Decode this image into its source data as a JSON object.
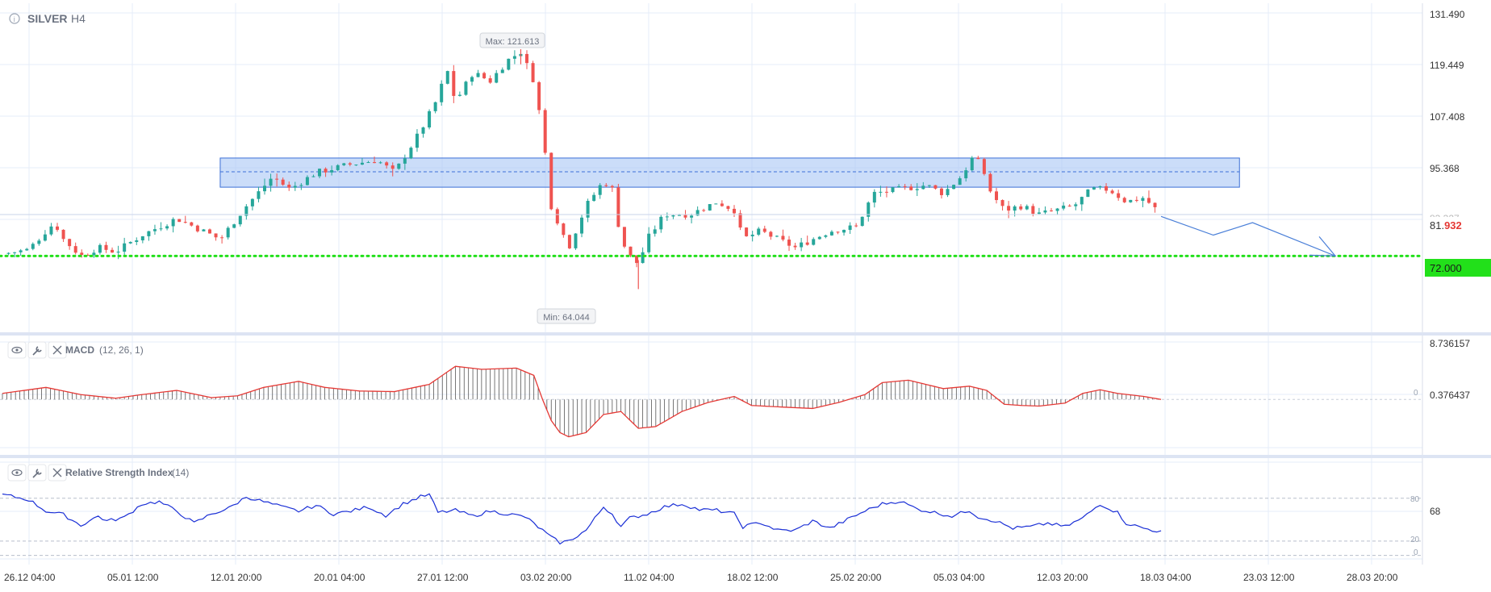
{
  "header": {
    "symbol": "SILVER",
    "timeframe": "H4"
  },
  "colors": {
    "bull": "#26a69a",
    "bear": "#ef5350",
    "zone_fill": "#a9c6f5",
    "zone_border": "#3b6fd6",
    "support_line": "#22e01a",
    "projection": "#4a7fd8",
    "macd_line": "#e53935",
    "macd_hist": "#555555",
    "rsi_line": "#1a2fd6",
    "grid": "#e6ecf8",
    "current_price": "#e53935",
    "support_label_bg": "#22e01a"
  },
  "chart_data": [
    {
      "type": "candlestick",
      "title": "SILVER H4",
      "x_dates": [
        "26.12 04:00",
        "05.01 12:00",
        "12.01 20:00",
        "20.01 04:00",
        "27.01 12:00",
        "03.02 20:00",
        "11.02 04:00",
        "18.02 12:00",
        "25.02 20:00",
        "05.03 04:00",
        "12.03 20:00",
        "18.03 04:00",
        "23.03 12:00",
        "28.03 20:00"
      ],
      "y_ticks": [
        "131.490",
        "119.449",
        "107.408",
        "95.368",
        "83.327",
        "72.000"
      ],
      "ylim": [
        56,
        131.49
      ],
      "series_path": [
        {
          "t": 0,
          "v": 72.5
        },
        {
          "t": 3,
          "v": 73.5
        },
        {
          "t": 5,
          "v": 78
        },
        {
          "t": 6,
          "v": 80
        },
        {
          "t": 7,
          "v": 76
        },
        {
          "t": 9,
          "v": 72
        },
        {
          "t": 11,
          "v": 74
        },
        {
          "t": 13,
          "v": 73
        },
        {
          "t": 16,
          "v": 77
        },
        {
          "t": 20,
          "v": 81
        },
        {
          "t": 22,
          "v": 79
        },
        {
          "t": 25,
          "v": 76
        },
        {
          "t": 28,
          "v": 84
        },
        {
          "t": 31,
          "v": 91
        },
        {
          "t": 33,
          "v": 88
        },
        {
          "t": 36,
          "v": 92
        },
        {
          "t": 40,
          "v": 94
        },
        {
          "t": 43,
          "v": 95
        },
        {
          "t": 45,
          "v": 92
        },
        {
          "t": 48,
          "v": 102
        },
        {
          "t": 50,
          "v": 110
        },
        {
          "t": 51,
          "v": 117
        },
        {
          "t": 52,
          "v": 109
        },
        {
          "t": 54,
          "v": 116
        },
        {
          "t": 56,
          "v": 114
        },
        {
          "t": 58,
          "v": 119
        },
        {
          "t": 59.5,
          "v": 121
        },
        {
          "t": 61,
          "v": 114
        },
        {
          "t": 62,
          "v": 102
        },
        {
          "t": 63,
          "v": 84
        },
        {
          "t": 64,
          "v": 79
        },
        {
          "t": 65,
          "v": 74
        },
        {
          "t": 67,
          "v": 84
        },
        {
          "t": 69,
          "v": 90
        },
        {
          "t": 70,
          "v": 88
        },
        {
          "t": 71,
          "v": 76
        },
        {
          "t": 72,
          "v": 72
        },
        {
          "t": 73,
          "v": 70
        },
        {
          "t": 74,
          "v": 76
        },
        {
          "t": 76,
          "v": 82
        },
        {
          "t": 79,
          "v": 82
        },
        {
          "t": 82,
          "v": 85
        },
        {
          "t": 84,
          "v": 83
        },
        {
          "t": 85,
          "v": 76
        },
        {
          "t": 87,
          "v": 78
        },
        {
          "t": 89,
          "v": 76
        },
        {
          "t": 91,
          "v": 74
        },
        {
          "t": 93,
          "v": 76
        },
        {
          "t": 95,
          "v": 78
        },
        {
          "t": 98,
          "v": 79
        },
        {
          "t": 100,
          "v": 87
        },
        {
          "t": 103,
          "v": 88
        },
        {
          "t": 106,
          "v": 89
        },
        {
          "t": 108,
          "v": 87
        },
        {
          "t": 110,
          "v": 91
        },
        {
          "t": 111.5,
          "v": 96
        },
        {
          "t": 112.5,
          "v": 93
        },
        {
          "t": 113.5,
          "v": 87
        },
        {
          "t": 115,
          "v": 83
        },
        {
          "t": 117,
          "v": 84
        },
        {
          "t": 119,
          "v": 82
        },
        {
          "t": 121,
          "v": 83
        },
        {
          "t": 123,
          "v": 84
        },
        {
          "t": 125,
          "v": 88
        },
        {
          "t": 127,
          "v": 88
        },
        {
          "t": 129,
          "v": 85
        },
        {
          "t": 131,
          "v": 86
        },
        {
          "t": 133,
          "v": 81.932
        }
      ],
      "max_label": "Max: 121.613",
      "max_value": 121.613,
      "min_label": "Min: 64.044",
      "min_value": 64.044,
      "current_price_prefix": "81.",
      "current_price_suffix": "932",
      "current_price": 81.932,
      "support_label": "72.000",
      "support_value": 72.0,
      "resistance_zone": {
        "from_t": 25,
        "to_t": 142,
        "low": 88.5,
        "high": 95.5,
        "mid": 92.2
      },
      "projection": [
        {
          "t": 133,
          "v": 81.5
        },
        {
          "t": 139,
          "v": 77
        },
        {
          "t": 143.5,
          "v": 80
        },
        {
          "t": 153,
          "v": 72
        }
      ],
      "grid": true
    },
    {
      "type": "macd",
      "label": "MACD",
      "params": "(12, 26, 1)",
      "y_ticks": [
        "8.736157",
        "0.376437"
      ],
      "zero_label": "0",
      "ylim": [
        -8,
        8.736157
      ],
      "series_path": [
        {
          "t": 0,
          "v": 1.0
        },
        {
          "t": 5,
          "v": 2.0
        },
        {
          "t": 9,
          "v": 0.8
        },
        {
          "t": 13,
          "v": 0.2
        },
        {
          "t": 16,
          "v": 0.8
        },
        {
          "t": 20,
          "v": 1.5
        },
        {
          "t": 24,
          "v": 0.3
        },
        {
          "t": 27,
          "v": 0.6
        },
        {
          "t": 30,
          "v": 2.0
        },
        {
          "t": 34,
          "v": 3.0
        },
        {
          "t": 37,
          "v": 2.0
        },
        {
          "t": 41,
          "v": 1.4
        },
        {
          "t": 45,
          "v": 1.3
        },
        {
          "t": 49,
          "v": 2.5
        },
        {
          "t": 52,
          "v": 5.5
        },
        {
          "t": 55,
          "v": 5.0
        },
        {
          "t": 59,
          "v": 5.2
        },
        {
          "t": 61,
          "v": 4.0
        },
        {
          "t": 62,
          "v": 0.0
        },
        {
          "t": 63,
          "v": -3.5
        },
        {
          "t": 64,
          "v": -5.5
        },
        {
          "t": 65,
          "v": -6.2
        },
        {
          "t": 67,
          "v": -5.5
        },
        {
          "t": 69,
          "v": -2.5
        },
        {
          "t": 71,
          "v": -2.0
        },
        {
          "t": 73,
          "v": -4.8
        },
        {
          "t": 75,
          "v": -4.5
        },
        {
          "t": 78,
          "v": -2.0
        },
        {
          "t": 81,
          "v": -0.5
        },
        {
          "t": 84,
          "v": 0.5
        },
        {
          "t": 86,
          "v": -1.0
        },
        {
          "t": 90,
          "v": -1.3
        },
        {
          "t": 93,
          "v": -1.5
        },
        {
          "t": 96,
          "v": -0.5
        },
        {
          "t": 99,
          "v": 0.8
        },
        {
          "t": 101,
          "v": 2.8
        },
        {
          "t": 104,
          "v": 3.2
        },
        {
          "t": 106,
          "v": 2.5
        },
        {
          "t": 108,
          "v": 1.8
        },
        {
          "t": 111,
          "v": 2.2
        },
        {
          "t": 113,
          "v": 1.5
        },
        {
          "t": 115,
          "v": -0.8
        },
        {
          "t": 117,
          "v": -1.0
        },
        {
          "t": 119,
          "v": -1.1
        },
        {
          "t": 122,
          "v": -0.6
        },
        {
          "t": 124,
          "v": 1.0
        },
        {
          "t": 126,
          "v": 1.6
        },
        {
          "t": 128,
          "v": 1.0
        },
        {
          "t": 131,
          "v": 0.5
        },
        {
          "t": 133,
          "v": 0.0
        }
      ],
      "grid": true
    },
    {
      "type": "rsi",
      "label": "Relative Strength Index",
      "params": "(14)",
      "y_ticks": [
        "68"
      ],
      "level_labels": [
        "80",
        "20",
        "0"
      ],
      "levels": [
        80,
        20,
        0
      ],
      "ylim": [
        -5,
        100
      ],
      "series_path": [
        {
          "t": 0,
          "v": 85
        },
        {
          "t": 3,
          "v": 78
        },
        {
          "t": 5,
          "v": 62
        },
        {
          "t": 7,
          "v": 57
        },
        {
          "t": 9,
          "v": 42
        },
        {
          "t": 11,
          "v": 55
        },
        {
          "t": 12,
          "v": 48
        },
        {
          "t": 14,
          "v": 53
        },
        {
          "t": 16,
          "v": 72
        },
        {
          "t": 18,
          "v": 75
        },
        {
          "t": 20,
          "v": 62
        },
        {
          "t": 22,
          "v": 45
        },
        {
          "t": 24,
          "v": 58
        },
        {
          "t": 26,
          "v": 66
        },
        {
          "t": 28,
          "v": 82
        },
        {
          "t": 30,
          "v": 75
        },
        {
          "t": 32,
          "v": 68
        },
        {
          "t": 34,
          "v": 62
        },
        {
          "t": 36,
          "v": 70
        },
        {
          "t": 38,
          "v": 58
        },
        {
          "t": 40,
          "v": 62
        },
        {
          "t": 42,
          "v": 68
        },
        {
          "t": 44,
          "v": 56
        },
        {
          "t": 46,
          "v": 72
        },
        {
          "t": 48,
          "v": 82
        },
        {
          "t": 49,
          "v": 85
        },
        {
          "t": 50,
          "v": 60
        },
        {
          "t": 52,
          "v": 63
        },
        {
          "t": 54,
          "v": 55
        },
        {
          "t": 56,
          "v": 62
        },
        {
          "t": 58,
          "v": 58
        },
        {
          "t": 60,
          "v": 54
        },
        {
          "t": 62,
          "v": 35
        },
        {
          "t": 63,
          "v": 25
        },
        {
          "t": 64,
          "v": 18
        },
        {
          "t": 65,
          "v": 20
        },
        {
          "t": 67,
          "v": 35
        },
        {
          "t": 69,
          "v": 68
        },
        {
          "t": 70,
          "v": 58
        },
        {
          "t": 71,
          "v": 40
        },
        {
          "t": 72,
          "v": 52
        },
        {
          "t": 74,
          "v": 58
        },
        {
          "t": 76,
          "v": 68
        },
        {
          "t": 78,
          "v": 72
        },
        {
          "t": 80,
          "v": 64
        },
        {
          "t": 82,
          "v": 63
        },
        {
          "t": 84,
          "v": 58
        },
        {
          "t": 85,
          "v": 40
        },
        {
          "t": 87,
          "v": 46
        },
        {
          "t": 89,
          "v": 35
        },
        {
          "t": 91,
          "v": 35
        },
        {
          "t": 93,
          "v": 48
        },
        {
          "t": 95,
          "v": 38
        },
        {
          "t": 97,
          "v": 50
        },
        {
          "t": 99,
          "v": 62
        },
        {
          "t": 101,
          "v": 72
        },
        {
          "t": 103,
          "v": 76
        },
        {
          "t": 105,
          "v": 65
        },
        {
          "t": 107,
          "v": 60
        },
        {
          "t": 109,
          "v": 55
        },
        {
          "t": 111,
          "v": 63
        },
        {
          "t": 112,
          "v": 54
        },
        {
          "t": 114,
          "v": 48
        },
        {
          "t": 116,
          "v": 38
        },
        {
          "t": 118,
          "v": 40
        },
        {
          "t": 120,
          "v": 45
        },
        {
          "t": 122,
          "v": 40
        },
        {
          "t": 124,
          "v": 52
        },
        {
          "t": 126,
          "v": 72
        },
        {
          "t": 128,
          "v": 60
        },
        {
          "t": 129,
          "v": 45
        },
        {
          "t": 131,
          "v": 38
        },
        {
          "t": 133,
          "v": 33
        }
      ],
      "grid": true
    }
  ]
}
